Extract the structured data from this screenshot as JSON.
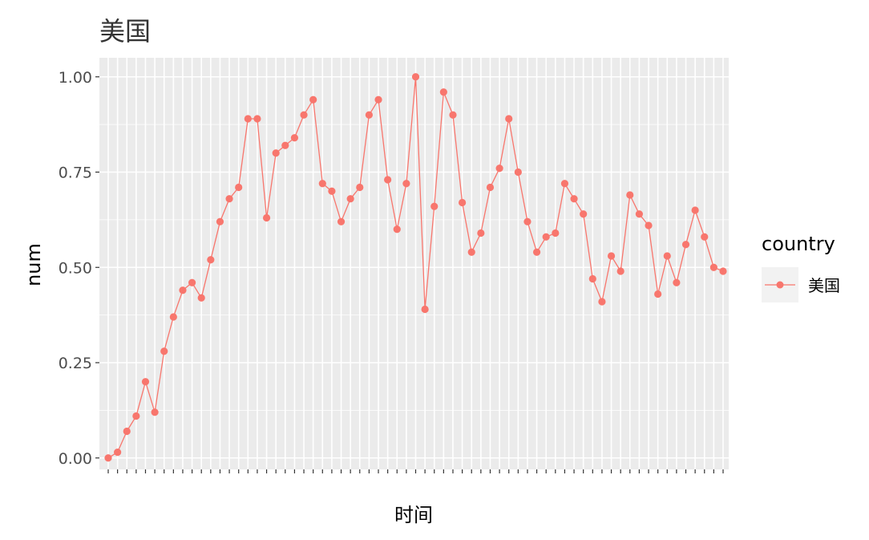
{
  "chart_data": {
    "type": "line",
    "title": "美国",
    "xlabel": "时间",
    "ylabel": "num",
    "ylim": [
      -0.03,
      1.05
    ],
    "yticks": [
      0.0,
      0.25,
      0.5,
      0.75,
      1.0
    ],
    "ytick_labels": [
      "0.00",
      "0.25",
      "0.50",
      "0.75",
      "1.00"
    ],
    "grid": true,
    "legend": {
      "title": "country",
      "placement": "right"
    },
    "series": [
      {
        "name": "美国",
        "color": "#F8766D",
        "values": [
          0.0,
          0.015,
          0.07,
          0.11,
          0.2,
          0.12,
          0.28,
          0.37,
          0.44,
          0.46,
          0.42,
          0.52,
          0.62,
          0.68,
          0.71,
          0.89,
          0.89,
          0.63,
          0.8,
          0.82,
          0.84,
          0.9,
          0.94,
          0.72,
          0.7,
          0.62,
          0.68,
          0.71,
          0.9,
          0.94,
          0.73,
          0.6,
          0.72,
          1.0,
          0.39,
          0.66,
          0.96,
          0.9,
          0.67,
          0.54,
          0.59,
          0.71,
          0.76,
          0.89,
          0.75,
          0.62,
          0.54,
          0.58,
          0.59,
          0.72,
          0.68,
          0.64,
          0.47,
          0.41,
          0.53,
          0.49,
          0.69,
          0.64,
          0.61,
          0.43,
          0.53,
          0.46,
          0.56,
          0.65,
          0.58,
          0.5,
          0.49
        ]
      }
    ]
  }
}
